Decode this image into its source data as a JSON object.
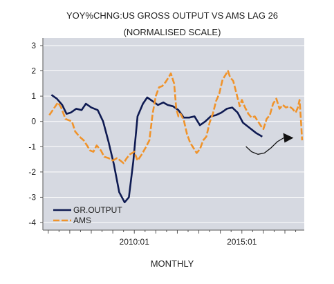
{
  "chart_data": {
    "type": "line",
    "title": "YOY%CHNG:US GROSS OUTPUT  VS AMS LAG 26",
    "subtitle": "(NORMALISED SCALE)",
    "xlabel": "MONTHLY",
    "ylabel": "",
    "ylim": [
      -4.3,
      3.3
    ],
    "xlim": [
      2005.75,
      2017.9
    ],
    "y_ticks": [
      3,
      2,
      1,
      0,
      -1,
      -2,
      -3,
      -4
    ],
    "y_tick_labels": [
      "3",
      "2",
      "1",
      "0",
      "-1",
      "-2",
      "-3",
      "-4"
    ],
    "x_tick_labels": [
      {
        "label": "2010:01",
        "x": 2010.0
      },
      {
        "label": "2015:01",
        "x": 2015.0
      }
    ],
    "grid": true,
    "legend_position": "bottom-left",
    "series": [
      {
        "name": "GR.OUTPUT",
        "color": "#0e1a52",
        "style": "solid",
        "points": [
          [
            2006.15,
            1.05
          ],
          [
            2006.4,
            0.9
          ],
          [
            2006.65,
            0.65
          ],
          [
            2006.85,
            0.3
          ],
          [
            2007.05,
            0.35
          ],
          [
            2007.3,
            0.5
          ],
          [
            2007.55,
            0.45
          ],
          [
            2007.75,
            0.7
          ],
          [
            2008.0,
            0.55
          ],
          [
            2008.3,
            0.45
          ],
          [
            2008.55,
            0.0
          ],
          [
            2008.8,
            -0.8
          ],
          [
            2009.05,
            -1.7
          ],
          [
            2009.3,
            -2.8
          ],
          [
            2009.55,
            -3.2
          ],
          [
            2009.75,
            -3.0
          ],
          [
            2009.95,
            -1.6
          ],
          [
            2010.15,
            0.2
          ],
          [
            2010.4,
            0.7
          ],
          [
            2010.6,
            0.95
          ],
          [
            2010.85,
            0.8
          ],
          [
            2011.1,
            0.65
          ],
          [
            2011.35,
            0.75
          ],
          [
            2011.55,
            0.65
          ],
          [
            2011.8,
            0.6
          ],
          [
            2012.05,
            0.45
          ],
          [
            2012.3,
            0.15
          ],
          [
            2012.55,
            0.15
          ],
          [
            2012.8,
            0.2
          ],
          [
            2013.05,
            -0.15
          ],
          [
            2013.3,
            0.0
          ],
          [
            2013.55,
            0.2
          ],
          [
            2013.8,
            0.25
          ],
          [
            2014.05,
            0.35
          ],
          [
            2014.3,
            0.5
          ],
          [
            2014.55,
            0.55
          ],
          [
            2014.8,
            0.35
          ],
          [
            2015.05,
            -0.05
          ],
          [
            2015.35,
            -0.25
          ],
          [
            2015.65,
            -0.45
          ],
          [
            2015.95,
            -0.6
          ]
        ]
      },
      {
        "name": "AMS",
        "color": "#f0932a",
        "style": "dashed",
        "points": [
          [
            2006.05,
            0.25
          ],
          [
            2006.25,
            0.5
          ],
          [
            2006.45,
            0.75
          ],
          [
            2006.6,
            0.55
          ],
          [
            2006.8,
            0.1
          ],
          [
            2006.95,
            0.05
          ],
          [
            2007.1,
            0.0
          ],
          [
            2007.25,
            -0.4
          ],
          [
            2007.45,
            -0.6
          ],
          [
            2007.65,
            -0.75
          ],
          [
            2007.8,
            -0.95
          ],
          [
            2007.95,
            -1.15
          ],
          [
            2008.1,
            -1.2
          ],
          [
            2008.25,
            -0.95
          ],
          [
            2008.45,
            -1.15
          ],
          [
            2008.6,
            -1.4
          ],
          [
            2008.8,
            -1.45
          ],
          [
            2009.0,
            -1.55
          ],
          [
            2009.2,
            -1.45
          ],
          [
            2009.35,
            -1.55
          ],
          [
            2009.5,
            -1.65
          ],
          [
            2009.65,
            -1.45
          ],
          [
            2009.8,
            -1.3
          ],
          [
            2010.0,
            -1.2
          ],
          [
            2010.15,
            -1.55
          ],
          [
            2010.35,
            -1.3
          ],
          [
            2010.55,
            -1.0
          ],
          [
            2010.7,
            -0.75
          ],
          [
            2010.85,
            0.3
          ],
          [
            2011.0,
            1.0
          ],
          [
            2011.15,
            1.35
          ],
          [
            2011.3,
            1.4
          ],
          [
            2011.45,
            1.55
          ],
          [
            2011.6,
            1.75
          ],
          [
            2011.7,
            1.9
          ],
          [
            2011.85,
            1.5
          ],
          [
            2011.95,
            0.5
          ],
          [
            2012.05,
            0.2
          ],
          [
            2012.15,
            0.3
          ],
          [
            2012.3,
            0.05
          ],
          [
            2012.45,
            -0.5
          ],
          [
            2012.6,
            -0.85
          ],
          [
            2012.75,
            -1.05
          ],
          [
            2012.9,
            -1.25
          ],
          [
            2013.05,
            -1.1
          ],
          [
            2013.2,
            -0.75
          ],
          [
            2013.35,
            -0.6
          ],
          [
            2013.5,
            -0.05
          ],
          [
            2013.65,
            0.3
          ],
          [
            2013.8,
            0.8
          ],
          [
            2013.95,
            1.1
          ],
          [
            2014.1,
            1.65
          ],
          [
            2014.25,
            1.85
          ],
          [
            2014.35,
            2.0
          ],
          [
            2014.45,
            1.75
          ],
          [
            2014.6,
            1.6
          ],
          [
            2014.75,
            1.1
          ],
          [
            2014.9,
            0.6
          ],
          [
            2015.0,
            0.85
          ],
          [
            2015.15,
            0.55
          ],
          [
            2015.3,
            0.3
          ],
          [
            2015.45,
            0.15
          ],
          [
            2015.6,
            0.2
          ],
          [
            2015.75,
            0.0
          ],
          [
            2015.9,
            -0.2
          ],
          [
            2016.0,
            -0.3
          ],
          [
            2016.15,
            0.1
          ],
          [
            2016.3,
            0.25
          ],
          [
            2016.45,
            0.7
          ],
          [
            2016.6,
            0.9
          ],
          [
            2016.75,
            0.5
          ],
          [
            2016.9,
            0.65
          ],
          [
            2017.05,
            0.55
          ],
          [
            2017.2,
            0.6
          ],
          [
            2017.35,
            0.5
          ],
          [
            2017.5,
            0.35
          ],
          [
            2017.6,
            0.55
          ],
          [
            2017.68,
            0.85
          ],
          [
            2017.75,
            0.0
          ],
          [
            2017.8,
            -0.75
          ]
        ]
      }
    ],
    "annotation": {
      "kind": "hand-drawn-arrow",
      "color": "#111111",
      "points": [
        [
          2015.2,
          -1.0
        ],
        [
          2015.45,
          -1.2
        ],
        [
          2015.75,
          -1.3
        ],
        [
          2016.05,
          -1.25
        ],
        [
          2016.35,
          -1.05
        ],
        [
          2016.65,
          -0.8
        ],
        [
          2016.95,
          -0.65
        ]
      ]
    }
  }
}
